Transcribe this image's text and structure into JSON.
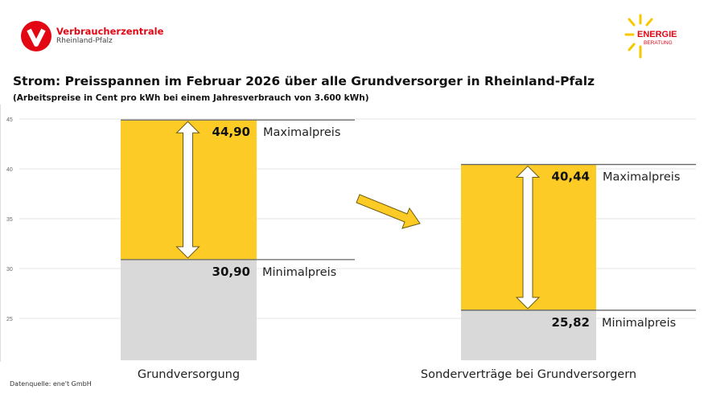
{
  "header": {
    "logo_left": {
      "line1": "Verbraucherzentrale",
      "line2": "Rheinland-Pfalz",
      "color": "#e30613"
    },
    "logo_right": {
      "line1": "ENERGIE",
      "line2": "BERATUNG",
      "color": "#e30613",
      "ray_color": "#f7c800"
    }
  },
  "footer": {
    "source": "Datenquelle: ene't GmbH"
  },
  "chart_data": {
    "type": "bar",
    "title": "Strom: Preisspannen im Februar 2026 über alle Grundversorger in Rheinland-Pfalz",
    "subtitle": "(Arbeitspreise in Cent pro kWh bei einem Jahresverbrauch von 3.600 kWh)",
    "ylim": [
      20.8,
      45
    ],
    "yticks": [
      "45",
      "40",
      "35",
      "30",
      "25"
    ],
    "ytick_values": [
      45,
      40,
      35,
      30,
      25
    ],
    "grid": true,
    "categories": [
      "Grundversorgung",
      "Sonderverträge bei Grundversorgern"
    ],
    "series": [
      {
        "name": "Minimalpreis",
        "values": [
          30.9,
          25.82
        ],
        "labels": [
          "30,90",
          "25,82"
        ],
        "color": "#d9d9d9"
      },
      {
        "name": "Maximalpreis",
        "values": [
          44.9,
          40.44
        ],
        "labels": [
          "44,90",
          "40,44"
        ],
        "color": "#fdcb25"
      }
    ]
  }
}
